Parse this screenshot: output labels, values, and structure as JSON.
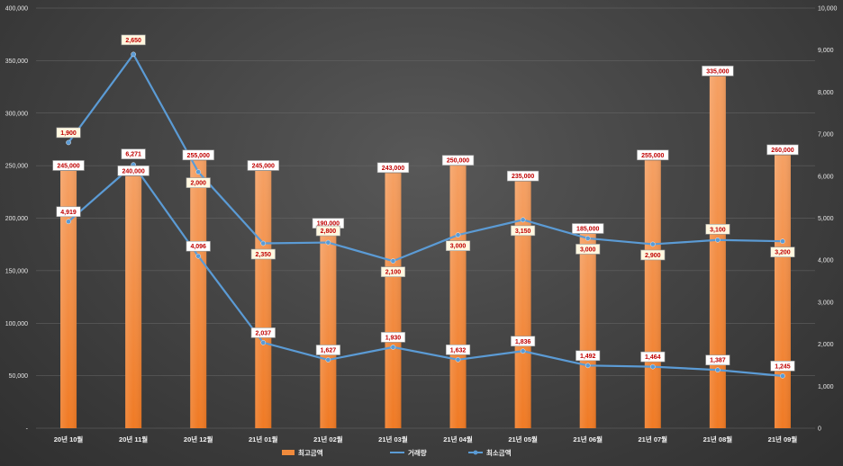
{
  "chart_data": {
    "type": "bar",
    "categories": [
      "20년 10월",
      "20년 11월",
      "20년 12월",
      "21년 01월",
      "21년 02월",
      "21년 03월",
      "21년 04월",
      "21년 05월",
      "21년 06월",
      "21년 07월",
      "21년 08월",
      "21년 09월"
    ],
    "series": [
      {
        "name": "최고금액",
        "type": "bar",
        "axis": "left",
        "color": "#f08a3c",
        "values": [
          245000,
          240000,
          255000,
          245000,
          190000,
          243000,
          250000,
          235000,
          185000,
          255000,
          335000,
          260000
        ],
        "labels": [
          "245,000",
          "240,000",
          "255,000",
          "245,000",
          "190,000",
          "243,000",
          "250,000",
          "235,000",
          "185,000",
          "255,000",
          "335,000",
          "260,000"
        ]
      },
      {
        "name": "거래량",
        "type": "line",
        "axis": "right",
        "color": "#5b9bd5",
        "values": [
          1900,
          2650,
          2000,
          2350,
          2800,
          2100,
          3000,
          3150,
          3000,
          2900,
          3100,
          3200
        ],
        "labels": [
          "1,900",
          "2,650",
          "2,000",
          "2,350",
          "2,800",
          "2,100",
          "3,000",
          "3,150",
          "3,000",
          "2,900",
          "3,100",
          "3,200"
        ]
      },
      {
        "name": "최소금액",
        "type": "line",
        "axis": "right",
        "color": "#5b9bd5",
        "values": [
          4919,
          6271,
          4096,
          2037,
          1627,
          1930,
          1632,
          1836,
          1492,
          1464,
          1387,
          1245
        ],
        "labels": [
          "4,919",
          "6,271",
          "4,096",
          "2,037",
          "1,627",
          "1,930",
          "1,632",
          "1,836",
          "1,492",
          "1,464",
          "1,387",
          "1,245"
        ]
      }
    ],
    "line_positions_right_axis": {
      "거래량": [
        6800,
        8900,
        6100,
        4400,
        4420,
        3980,
        4600,
        4960,
        4520,
        4380,
        4480,
        4450
      ]
    },
    "y_left": {
      "min": 0,
      "max": 400000,
      "ticks": [
        "-",
        "50,000",
        "100,000",
        "150,000",
        "200,000",
        "250,000",
        "300,000",
        "350,000",
        "400,000"
      ]
    },
    "y_right": {
      "min": 0,
      "max": 10000,
      "ticks": [
        "0",
        "1,000",
        "2,000",
        "3,000",
        "4,000",
        "5,000",
        "6,000",
        "7,000",
        "8,000",
        "9,000",
        "10,000"
      ]
    },
    "legend": {
      "position": "bottom",
      "items": [
        "최고금액",
        "거래량",
        "최소금액"
      ]
    },
    "grid": true
  }
}
